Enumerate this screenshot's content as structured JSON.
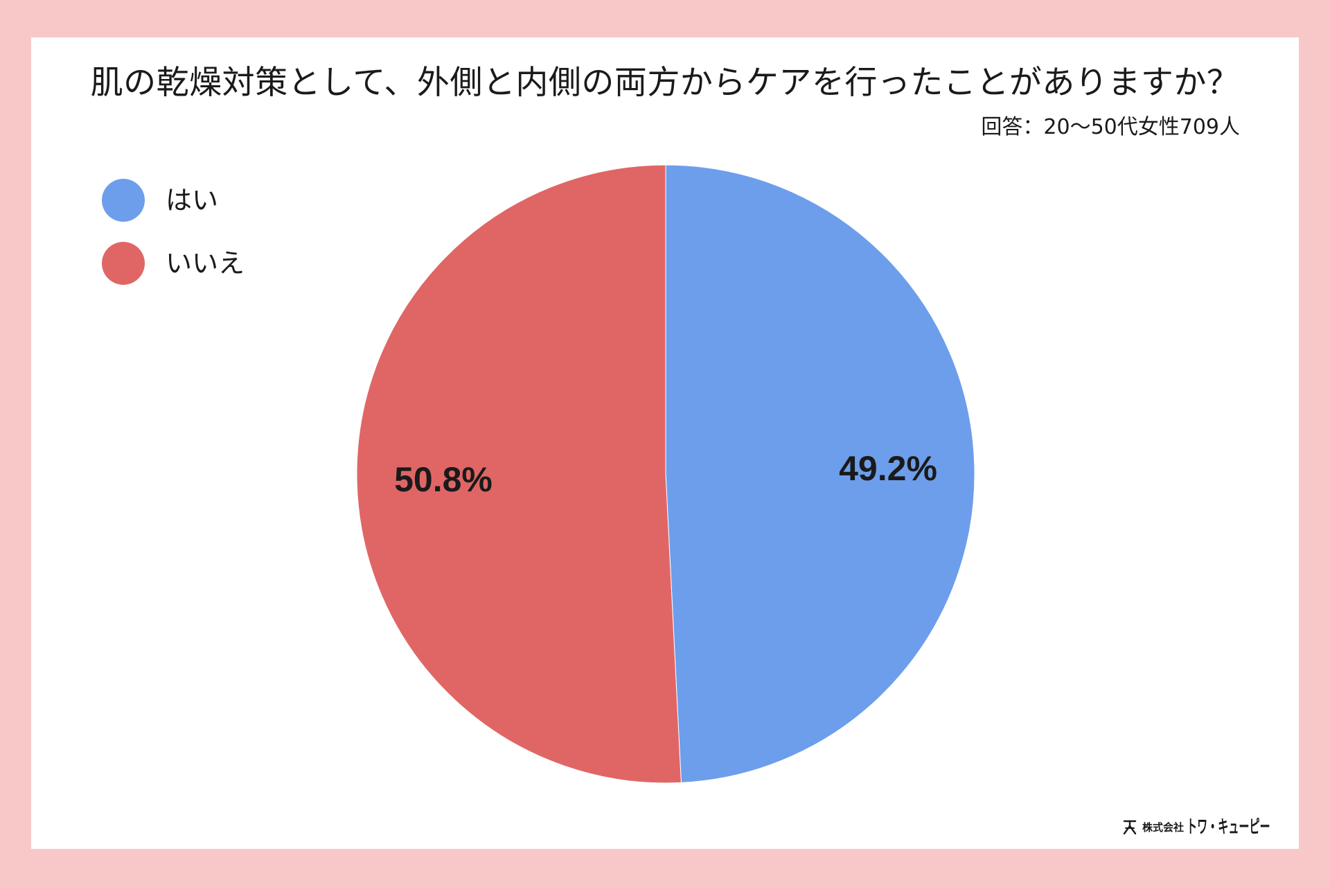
{
  "colors": {
    "page_background": "#f8c8c9",
    "card_background": "#ffffff",
    "text": "#1a1a1a"
  },
  "logo": {
    "icon": "company-logo-icon",
    "prefix": "株式会社",
    "name": "トワ・キューピー"
  },
  "chart_data": {
    "type": "pie",
    "title": "肌の乾燥対策として、外側と内側の両方からケアを行ったことがありますか？",
    "subtitle": "回答：20～50代女性709人",
    "unit": "%",
    "legend_position": "top-left",
    "slices": [
      {
        "label": "はい",
        "value": 49.2,
        "color": "#6d9eeb"
      },
      {
        "label": "いいえ",
        "value": 50.8,
        "color": "#e06666"
      }
    ]
  }
}
